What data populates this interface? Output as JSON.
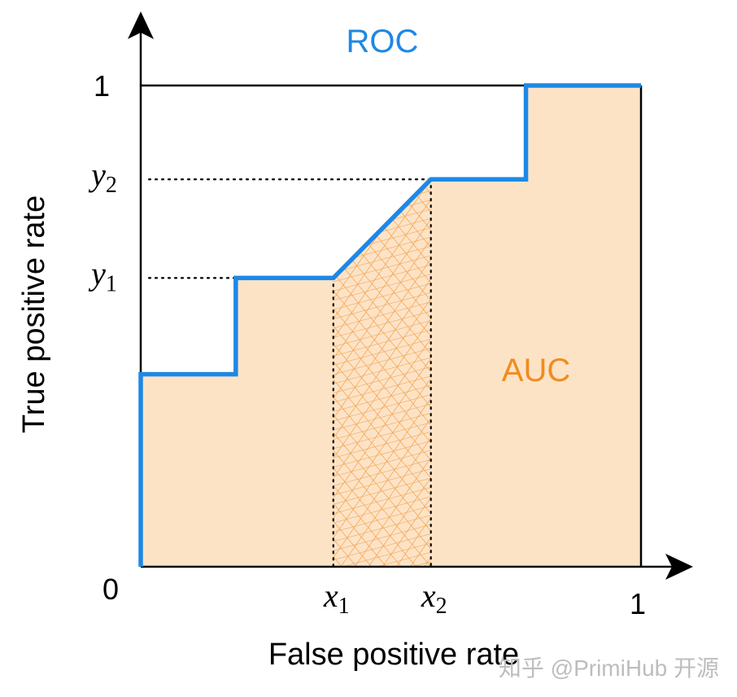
{
  "title": "ROC",
  "area_label": "AUC",
  "x_axis_label": "False positive rate",
  "y_axis_label": "True positive rate",
  "origin_label": "0",
  "x_max_label": "1",
  "y_max_label": "1",
  "x_markers": [
    {
      "var": "x",
      "sub": "1",
      "value": 0.385
    },
    {
      "var": "x",
      "sub": "2",
      "value": 0.58
    }
  ],
  "y_markers": [
    {
      "var": "y",
      "sub": "1",
      "value": 0.6
    },
    {
      "var": "y",
      "sub": "2",
      "value": 0.805
    }
  ],
  "watermark": "知乎 @PrimiHub 开源",
  "colors": {
    "roc_line": "#1e88e5",
    "auc_fill": "#fde3c6",
    "hatch": "#f0a04b",
    "auc_label": "#f08c1e",
    "title": "#1e88e5",
    "axis": "#000000",
    "watermark": "#bdbdbd"
  },
  "chart_data": {
    "type": "line",
    "series": [
      {
        "name": "ROC",
        "x": [
          0,
          0,
          0.19,
          0.19,
          0.385,
          0.58,
          0.77,
          0.77,
          1.0
        ],
        "y": [
          0,
          0.4,
          0.4,
          0.6,
          0.6,
          0.805,
          0.805,
          1.0,
          1.0
        ]
      }
    ],
    "shaded_region": {
      "label": "AUC",
      "under_series": "ROC",
      "x_from": 0,
      "x_to": 1
    },
    "hatched_region": {
      "x_from": 0.385,
      "x_to": 0.58
    },
    "xlim": [
      0,
      1
    ],
    "ylim": [
      0,
      1
    ],
    "grid": false
  }
}
